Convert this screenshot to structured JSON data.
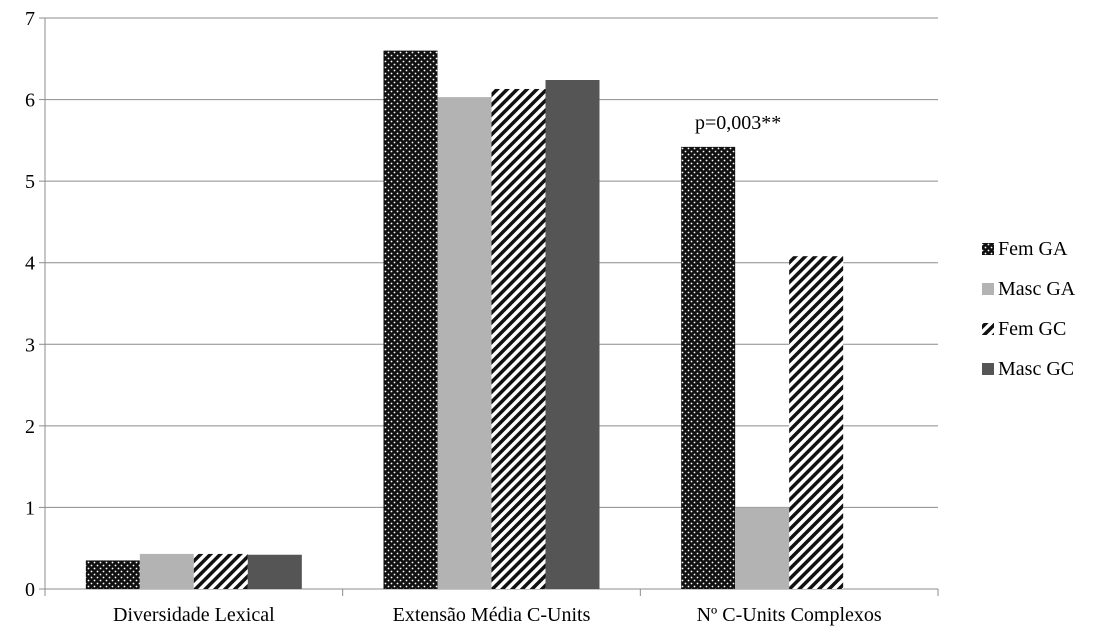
{
  "chart_data": {
    "type": "bar",
    "title": "",
    "xlabel": "",
    "ylabel": "",
    "ylim": [
      0,
      7
    ],
    "yticks": [
      0,
      1,
      2,
      3,
      4,
      5,
      6,
      7
    ],
    "grid": true,
    "legend_position": "right",
    "categories": [
      "Diversidade Lexical",
      "Extensão Média C-Units",
      "Nº C-Units Complexos"
    ],
    "series": [
      {
        "name": "Fem GA",
        "values": [
          0.35,
          6.6,
          5.42
        ],
        "color": "#111111",
        "pattern": "dots"
      },
      {
        "name": "Masc GA",
        "values": [
          0.43,
          6.03,
          1.0
        ],
        "color": "#b3b3b3",
        "pattern": "solid"
      },
      {
        "name": "Fem GC",
        "values": [
          0.43,
          6.13,
          4.08
        ],
        "color": "#111111",
        "pattern": "diagonal-stripes"
      },
      {
        "name": "Masc GC",
        "values": [
          0.42,
          6.24,
          null
        ],
        "color": "#555555",
        "pattern": "solid"
      }
    ],
    "annotations": [
      {
        "text": "p=0,003**",
        "category_index": 2,
        "series_index": 0
      }
    ]
  }
}
